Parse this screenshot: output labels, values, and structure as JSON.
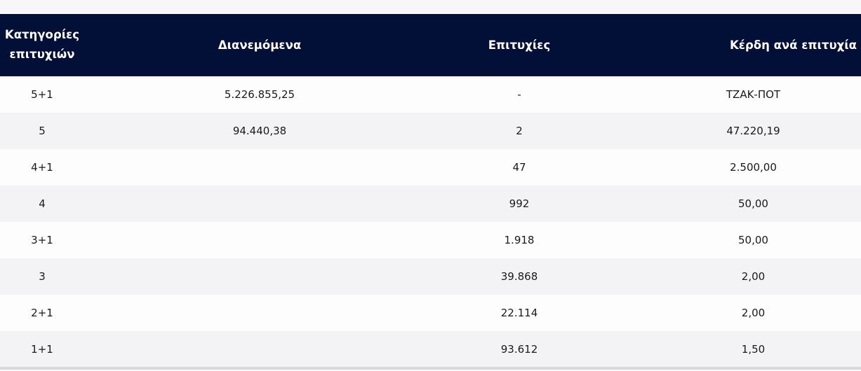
{
  "table": {
    "headers": {
      "category_line1": "Κατηγορίες",
      "category_line2": "επιτυχιών",
      "distributed": "Διανεμόμενα",
      "wins": "Επιτυχίες",
      "prize_per_win": "Κέρδη ανά επιτυχία"
    },
    "rows": [
      {
        "category": "5+1",
        "distributed": "5.226.855,25",
        "wins": "-",
        "prize": "ΤΖΑΚ-ΠΟΤ"
      },
      {
        "category": "5",
        "distributed": "94.440,38",
        "wins": "2",
        "prize": "47.220,19"
      },
      {
        "category": "4+1",
        "distributed": "",
        "wins": "47",
        "prize": "2.500,00"
      },
      {
        "category": "4",
        "distributed": "",
        "wins": "992",
        "prize": "50,00"
      },
      {
        "category": "3+1",
        "distributed": "",
        "wins": "1.918",
        "prize": "50,00"
      },
      {
        "category": "3",
        "distributed": "",
        "wins": "39.868",
        "prize": "2,00"
      },
      {
        "category": "2+1",
        "distributed": "",
        "wins": "22.114",
        "prize": "2,00"
      },
      {
        "category": "1+1",
        "distributed": "",
        "wins": "93.612",
        "prize": "1,50"
      }
    ]
  },
  "colors": {
    "header_bg": "#020f36",
    "header_text": "#ffffff",
    "row_odd": "#fdfdfd",
    "row_even": "#f3f3f5"
  }
}
